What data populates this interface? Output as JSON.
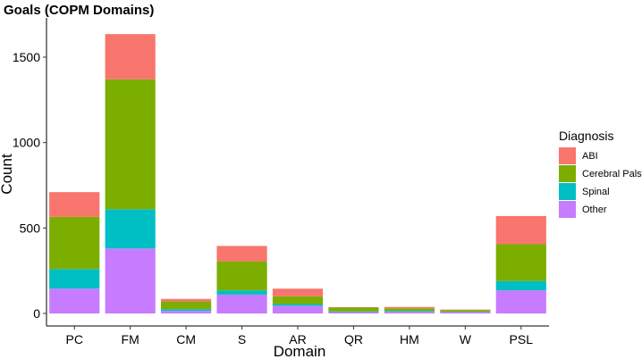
{
  "chart_data": {
    "type": "bar",
    "stacked": true,
    "title": "Goals (COPM Domains)",
    "xlabel": "Domain",
    "ylabel": "Count",
    "ylim": [
      0,
      1700
    ],
    "yticks": [
      0,
      500,
      1000,
      1500
    ],
    "grid": false,
    "categories": [
      "PC",
      "FM",
      "CM",
      "S",
      "AR",
      "QR",
      "HM",
      "W",
      "PSL"
    ],
    "series": [
      {
        "name": "Other",
        "color": "#C77CFF",
        "values": [
          145,
          380,
          15,
          110,
          45,
          8,
          10,
          8,
          135
        ]
      },
      {
        "name": "Spinal",
        "color": "#00BFC4",
        "values": [
          115,
          230,
          10,
          25,
          10,
          4,
          5,
          2,
          55
        ]
      },
      {
        "name": "Cerebral Palsy",
        "color": "#7CAE00",
        "values": [
          305,
          760,
          45,
          170,
          45,
          22,
          15,
          10,
          215
        ]
      },
      {
        "name": "ABI",
        "color": "#F8766D",
        "values": [
          145,
          265,
          15,
          90,
          45,
          3,
          8,
          3,
          165
        ]
      }
    ],
    "legend": {
      "title": "Diagnosis",
      "position": "right",
      "order": [
        "ABI",
        "Cerebral Palsy",
        "Spinal",
        "Other"
      ]
    }
  }
}
